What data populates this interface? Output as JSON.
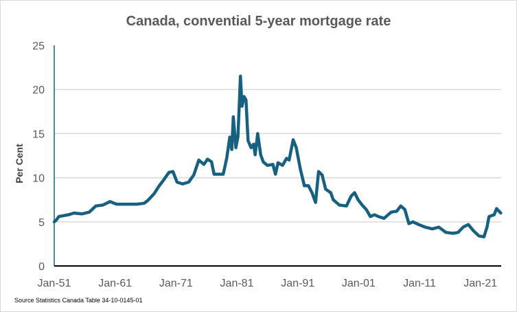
{
  "chart_data": {
    "type": "line",
    "title": "Canada, convential 5-year mortgage rate",
    "ylabel": "Per Cent",
    "xlabel": "",
    "source": "Source Statistics  Canada Table  34-10-0145-01",
    "ylim": [
      0,
      25
    ],
    "yticks": [
      0,
      5,
      10,
      15,
      20,
      25
    ],
    "xlim": [
      "1951-01",
      "2024-06"
    ],
    "xticks": [
      "Jan-51",
      "Jan-61",
      "Jan-71",
      "Jan-81",
      "Jan-91",
      "Jan-01",
      "Jan-11",
      "Jan-21"
    ],
    "grid": true,
    "line_color": "#17607f",
    "series": [
      {
        "x": [
          "1951-01",
          "1951-05",
          "1951-10",
          "1953-05",
          "1954-04",
          "1955-08",
          "1956-10",
          "1957-11",
          "1959-01",
          "1960-03",
          "1961-04",
          "1964-08",
          "1965-10",
          "1966-05",
          "1967-06",
          "1968-04",
          "1968-12",
          "1969-11",
          "1970-07",
          "1971-03",
          "1972-02",
          "1973-02",
          "1973-12",
          "1974-10",
          "1975-08",
          "1976-03",
          "1976-11",
          "1977-04",
          "1978-10",
          "1979-05",
          "1979-11",
          "1980-03",
          "1980-06",
          "1980-11",
          "1981-03",
          "1981-06",
          "1981-08",
          "1981-11",
          "1982-03",
          "1982-07",
          "1982-11",
          "1983-05",
          "1983-10",
          "1984-01",
          "1984-06",
          "1984-12",
          "1985-05",
          "1986-01",
          "1986-12",
          "1987-05",
          "1987-10",
          "1988-07",
          "1989-03",
          "1989-08",
          "1990-04",
          "1990-10",
          "1991-06",
          "1992-02",
          "1992-10",
          "1993-05",
          "1993-12",
          "1994-06",
          "1995-01",
          "1995-08",
          "1996-06",
          "1996-11",
          "1997-11",
          "1999-01",
          "1999-10",
          "2000-05",
          "2000-12",
          "2001-08",
          "2002-04",
          "2002-12",
          "2003-08",
          "2004-04",
          "2005-03",
          "2006-05",
          "2007-04",
          "2007-12",
          "2008-08",
          "2009-04",
          "2009-12",
          "2010-11",
          "2011-12",
          "2013-02",
          "2014-03",
          "2015-05",
          "2016-07",
          "2017-05",
          "2018-03",
          "2019-01",
          "2019-11",
          "2020-10",
          "2021-08",
          "2022-02",
          "2022-06",
          "2023-04",
          "2023-09",
          "2024-05"
        ],
        "values": [
          5.0,
          5.2,
          5.6,
          5.8,
          6.0,
          5.9,
          6.1,
          6.8,
          6.9,
          7.3,
          7.0,
          7.0,
          7.1,
          7.4,
          8.2,
          9.1,
          9.7,
          10.6,
          10.7,
          9.5,
          9.3,
          9.5,
          10.3,
          12.0,
          11.5,
          12.1,
          11.8,
          10.4,
          10.4,
          12.2,
          14.6,
          13.2,
          16.9,
          13.4,
          14.6,
          18.6,
          21.5,
          18.1,
          19.2,
          18.8,
          14.2,
          13.4,
          13.8,
          12.6,
          15.0,
          12.6,
          11.8,
          11.4,
          11.5,
          10.4,
          11.7,
          11.4,
          12.2,
          12.0,
          14.3,
          13.4,
          11.0,
          9.1,
          9.1,
          8.3,
          7.2,
          10.7,
          10.3,
          8.7,
          8.3,
          7.5,
          6.9,
          6.8,
          7.9,
          8.3,
          7.5,
          6.9,
          6.4,
          5.6,
          5.8,
          5.6,
          5.4,
          6.1,
          6.2,
          6.8,
          6.4,
          4.8,
          5.0,
          4.7,
          4.4,
          4.2,
          4.4,
          3.8,
          3.7,
          3.8,
          4.4,
          4.7,
          4.0,
          3.4,
          3.3,
          4.4,
          5.6,
          5.8,
          6.5,
          6.0
        ]
      }
    ]
  }
}
